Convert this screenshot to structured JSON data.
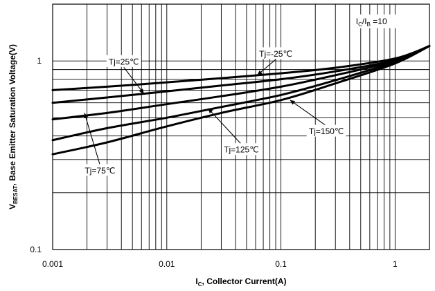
{
  "chart_data": {
    "type": "line",
    "x_scale": "log",
    "y_scale": "log",
    "xlim": [
      0.001,
      2
    ],
    "ylim": [
      0.1,
      2
    ],
    "grid": true,
    "xlabel": "I",
    "xlabel_sub": "C",
    "xlabel_rest": ", Collector Current(A)",
    "ylabel": "V",
    "ylabel_sub": "BESAT",
    "ylabel_rest": ", Base Emitter Saturation Voltage(V)",
    "x_ticks": [
      {
        "value": 0.001,
        "label": "0.001"
      },
      {
        "value": 0.01,
        "label": "0.01"
      },
      {
        "value": 0.1,
        "label": "0.1"
      },
      {
        "value": 1,
        "label": "1"
      }
    ],
    "y_ticks": [
      {
        "value": 0.1,
        "label": "0.1"
      },
      {
        "value": 1,
        "label": "1"
      }
    ],
    "condition": {
      "i": "I",
      "c": "C",
      "mid": "/I",
      "b": "B",
      "tail": " =10"
    },
    "series": [
      {
        "name": "Tj=-25℃",
        "x": [
          0.001,
          0.003,
          0.01,
          0.03,
          0.1,
          0.3,
          1,
          2
        ],
        "y": [
          0.7,
          0.73,
          0.77,
          0.81,
          0.86,
          0.92,
          1.03,
          1.2
        ]
      },
      {
        "name": "Tj=25℃",
        "x": [
          0.001,
          0.003,
          0.01,
          0.03,
          0.1,
          0.3,
          1,
          2
        ],
        "y": [
          0.6,
          0.64,
          0.69,
          0.74,
          0.8,
          0.88,
          1.01,
          1.2
        ]
      },
      {
        "name": "Tj=75℃",
        "x": [
          0.001,
          0.003,
          0.01,
          0.03,
          0.1,
          0.3,
          1,
          2
        ],
        "y": [
          0.49,
          0.53,
          0.59,
          0.65,
          0.73,
          0.84,
          1.0,
          1.2
        ]
      },
      {
        "name": "Tj=125℃",
        "x": [
          0.001,
          0.003,
          0.01,
          0.03,
          0.1,
          0.3,
          1,
          2
        ],
        "y": [
          0.38,
          0.44,
          0.5,
          0.57,
          0.66,
          0.79,
          0.99,
          1.2
        ]
      },
      {
        "name": "Tj=150℃",
        "x": [
          0.001,
          0.003,
          0.01,
          0.03,
          0.1,
          0.3,
          1,
          2
        ],
        "y": [
          0.32,
          0.37,
          0.45,
          0.53,
          0.62,
          0.76,
          0.97,
          1.2
        ]
      }
    ],
    "annotations": [
      {
        "text": "Tj=25℃",
        "series": 1,
        "x": 0.0042,
        "y": 0.99,
        "target_x": 0.0063,
        "target_y": 0.67
      },
      {
        "text": "Tj=-25℃",
        "series": 0,
        "x": 0.09,
        "y": 1.09,
        "target_x": 0.062,
        "target_y": 0.84
      },
      {
        "text": "Tj=150℃",
        "series": 4,
        "x": 0.25,
        "y": 0.423,
        "target_x": 0.12,
        "target_y": 0.62
      },
      {
        "text": "Tj=125℃",
        "series": 3,
        "x": 0.045,
        "y": 0.338,
        "target_x": 0.023,
        "target_y": 0.56
      },
      {
        "text": "Tj=75℃",
        "series": 2,
        "x": 0.0026,
        "y": 0.262,
        "target_x": 0.0019,
        "target_y": 0.53
      }
    ]
  }
}
